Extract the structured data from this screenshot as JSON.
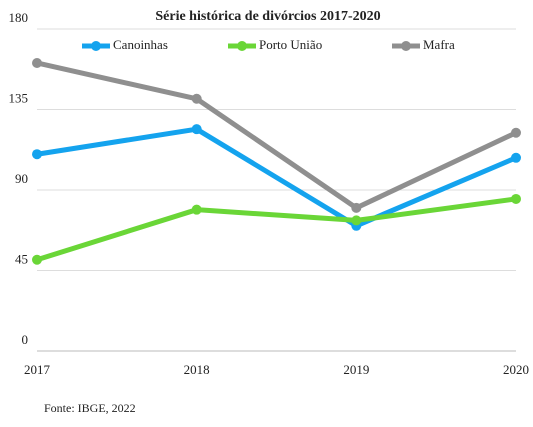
{
  "chart_data": {
    "type": "line",
    "title": "Série histórica de divórcios 2017-2020",
    "categories": [
      "2017",
      "2018",
      "2019",
      "2020"
    ],
    "series": [
      {
        "name": "Canoinhas",
        "color": "#14a3ee",
        "values": [
          110,
          124,
          70,
          108
        ]
      },
      {
        "name": "Porto União",
        "color": "#6ad637",
        "values": [
          51,
          79,
          73,
          85
        ]
      },
      {
        "name": "Mafra",
        "color": "#8f8f8f",
        "values": [
          161,
          141,
          80,
          122
        ]
      }
    ],
    "ylim": [
      0,
      180
    ],
    "yticks": [
      0,
      45,
      90,
      135,
      180
    ],
    "grid": true,
    "legend": "top",
    "source": "Fonte: IBGE, 2022"
  }
}
